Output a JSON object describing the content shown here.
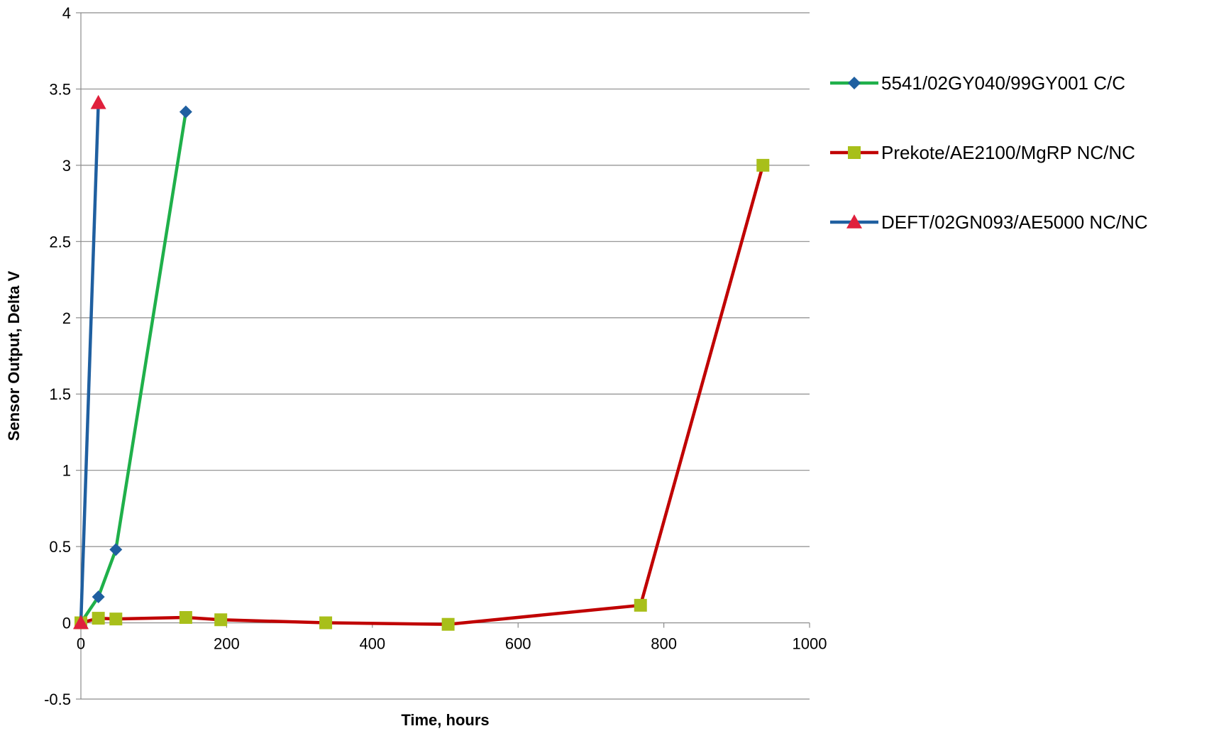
{
  "chart_data": {
    "type": "scatter",
    "title": "",
    "xlabel": "Time, hours",
    "ylabel": "Sensor Output, Delta V",
    "xlim": [
      0,
      1000
    ],
    "ylim": [
      -0.5,
      4
    ],
    "x_ticks": [
      0,
      200,
      400,
      600,
      800,
      1000
    ],
    "y_ticks": [
      -0.5,
      0,
      0.5,
      1,
      1.5,
      2,
      2.5,
      3,
      3.5,
      4
    ],
    "x_tick_labels": [
      "0",
      "200",
      "400",
      "600",
      "800",
      "1000"
    ],
    "y_tick_labels": [
      "-0.5",
      "0",
      "0.5",
      "1",
      "1.5",
      "2",
      "2.5",
      "3",
      "3.5",
      "4"
    ],
    "grid": {
      "horizontal": true,
      "vertical": false
    },
    "legend_position": "right",
    "series": [
      {
        "name": "5541/02GY040/99GY001 C/C",
        "line_color": "#1FB04A",
        "marker": "diamond",
        "marker_color": "#1F5FA0",
        "x": [
          0,
          24,
          48,
          144
        ],
        "y": [
          0,
          0.17,
          0.48,
          3.35
        ]
      },
      {
        "name": "Prekote/AE2100/MgRP NC/NC",
        "line_color": "#C00000",
        "marker": "square",
        "marker_color": "#A8BF1A",
        "x": [
          0,
          24,
          48,
          144,
          192,
          336,
          504,
          768,
          936
        ],
        "y": [
          0,
          0.03,
          0.025,
          0.035,
          0.02,
          0.0,
          -0.01,
          0.115,
          3.0
        ]
      },
      {
        "name": "DEFT/02GN093/AE5000 NC/NC",
        "line_color": "#1F5FA0",
        "marker": "triangle",
        "marker_color": "#E0203C",
        "x": [
          0,
          24
        ],
        "y": [
          0,
          3.41
        ]
      }
    ]
  }
}
